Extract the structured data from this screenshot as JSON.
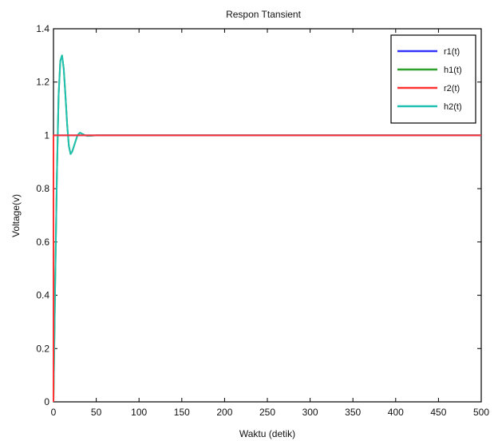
{
  "chart_data": {
    "type": "line",
    "title": "Respon Ttansient",
    "xlabel": "Waktu (detik)",
    "ylabel": "Voltage(v)",
    "xlim": [
      0,
      500
    ],
    "ylim": [
      0,
      1.4
    ],
    "xticks": [
      "0",
      "50",
      "100",
      "150",
      "200",
      "250",
      "300",
      "350",
      "400",
      "450",
      "500"
    ],
    "yticks": [
      "0",
      "0.2",
      "0.4",
      "0.6",
      "0.8",
      "1",
      "1.2",
      "1.4"
    ],
    "grid": false,
    "legend_position": "top-right",
    "series": [
      {
        "name": "r1(t)",
        "color": "#3333ff",
        "x": [
          0,
          0,
          500
        ],
        "y": [
          0,
          1,
          1
        ]
      },
      {
        "name": "h1(t)",
        "color": "#2ea02e",
        "x": [
          0,
          2,
          4,
          6,
          8,
          10,
          12,
          14,
          16,
          18,
          20,
          22,
          25,
          28,
          31,
          34,
          37,
          40,
          45,
          50,
          60,
          80,
          100,
          150,
          200,
          300,
          400,
          500
        ],
        "y": [
          0,
          0.45,
          0.85,
          1.15,
          1.28,
          1.3,
          1.25,
          1.15,
          1.04,
          0.96,
          0.93,
          0.94,
          0.97,
          1.0,
          1.01,
          1.005,
          1.0,
          0.998,
          0.999,
          1.0,
          1.0,
          1.0,
          1.0,
          1.0,
          1.0,
          1.0,
          1.0,
          1.0
        ]
      },
      {
        "name": "r2(t)",
        "color": "#ff3333",
        "x": [
          0,
          0,
          500
        ],
        "y": [
          0,
          1,
          1
        ]
      },
      {
        "name": "h2(t)",
        "color": "#20c0b0",
        "x": [
          0,
          2,
          4,
          6,
          8,
          10,
          12,
          14,
          16,
          18,
          20,
          22,
          25,
          28,
          31,
          34,
          37,
          40,
          45,
          50,
          60,
          80,
          100,
          150,
          200,
          300,
          400,
          500
        ],
        "y": [
          0,
          0.45,
          0.85,
          1.15,
          1.28,
          1.3,
          1.25,
          1.15,
          1.04,
          0.96,
          0.93,
          0.94,
          0.97,
          1.0,
          1.01,
          1.005,
          1.0,
          0.998,
          0.999,
          1.0,
          1.0,
          1.0,
          1.0,
          1.0,
          1.0,
          1.0,
          1.0,
          1.0
        ]
      }
    ]
  }
}
